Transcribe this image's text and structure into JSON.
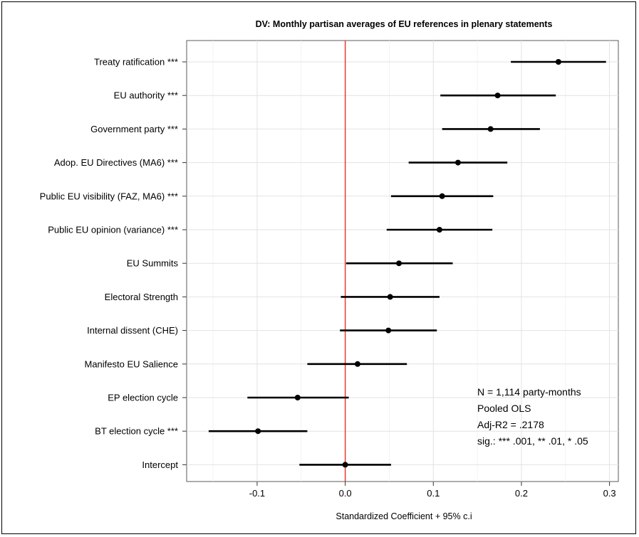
{
  "chart_data": {
    "type": "coefficient-plot",
    "title": "DV: Monthly partisan averages of EU references in plenary statements",
    "xlabel": "Standardized Coefficient + 95% c.i",
    "xlim": [
      -0.18,
      0.31
    ],
    "x_ticks": [
      -0.1,
      0.0,
      0.1,
      0.2,
      0.3
    ],
    "x_tick_labels": [
      "-0.1",
      "0.0",
      "0.1",
      "0.2",
      "0.3"
    ],
    "reference_line": 0,
    "reference_line_color": "#e8392b",
    "grid": true,
    "series": [
      {
        "label": "Treaty ratification ***",
        "estimate": 0.242,
        "lower": 0.188,
        "upper": 0.296
      },
      {
        "label": "EU authority ***",
        "estimate": 0.173,
        "lower": 0.108,
        "upper": 0.239
      },
      {
        "label": "Government party ***",
        "estimate": 0.165,
        "lower": 0.11,
        "upper": 0.221
      },
      {
        "label": "Adop. EU Directives (MA6) ***",
        "estimate": 0.128,
        "lower": 0.072,
        "upper": 0.184
      },
      {
        "label": "Public EU visibility (FAZ, MA6) ***",
        "estimate": 0.11,
        "lower": 0.052,
        "upper": 0.168
      },
      {
        "label": "Public EU opinion (variance) ***",
        "estimate": 0.107,
        "lower": 0.047,
        "upper": 0.167
      },
      {
        "label": "EU Summits",
        "estimate": 0.061,
        "lower": 0.001,
        "upper": 0.122
      },
      {
        "label": "Electoral Strength",
        "estimate": 0.051,
        "lower": -0.005,
        "upper": 0.107
      },
      {
        "label": "Internal dissent (CHE)",
        "estimate": 0.049,
        "lower": -0.006,
        "upper": 0.104
      },
      {
        "label": "Manifesto EU Salience",
        "estimate": 0.014,
        "lower": -0.043,
        "upper": 0.07
      },
      {
        "label": "EP election cycle",
        "estimate": -0.054,
        "lower": -0.111,
        "upper": 0.004
      },
      {
        "label": "BT election cycle ***",
        "estimate": -0.099,
        "lower": -0.155,
        "upper": -0.043
      },
      {
        "label": "Intercept",
        "estimate": 0.0,
        "lower": -0.052,
        "upper": 0.052
      }
    ],
    "annotations": [
      "N = 1,114 party-months",
      "Pooled OLS",
      "Adj-R2 = .2178",
      "sig.: *** .001, ** .01, * .05"
    ]
  }
}
